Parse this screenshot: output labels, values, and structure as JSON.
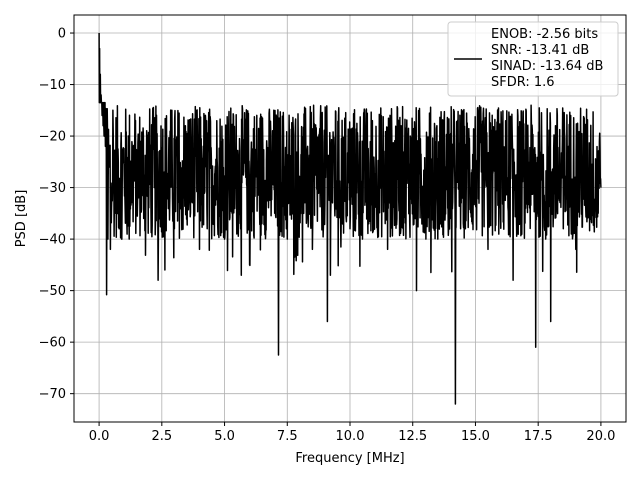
{
  "chart_data": {
    "type": "line",
    "title": "",
    "xlabel": "Frequency [MHz]",
    "ylabel": "PSD [dB]",
    "xlim": [
      -1.0,
      21.0
    ],
    "ylim": [
      -75.5,
      3.5
    ],
    "x_ticks": [
      0.0,
      2.5,
      5.0,
      7.5,
      10.0,
      12.5,
      15.0,
      17.5,
      20.0
    ],
    "x_tick_labels": [
      "0.0",
      "2.5",
      "5.0",
      "7.5",
      "10.0",
      "12.5",
      "15.0",
      "17.5",
      "20.0"
    ],
    "y_ticks": [
      0,
      -10,
      -20,
      -30,
      -40,
      -50,
      -60,
      -70
    ],
    "y_tick_labels": [
      "0",
      "−10",
      "−20",
      "−30",
      "−40",
      "−50",
      "−60",
      "−70"
    ],
    "grid": true,
    "legend_position": "top-right",
    "series": [
      {
        "name": "ENOB: -2.56 bits\nSNR: -13.41 dB\nSINAD: -13.64 dB\nSFDR: 1.6",
        "color": "#000000",
        "x": [
          0.0,
          0.02,
          0.05,
          0.08,
          0.12,
          0.16,
          0.2,
          0.25,
          0.3,
          0.35,
          0.45,
          0.55,
          0.65,
          0.8,
          1.0,
          1.2,
          1.5,
          1.8,
          2.2,
          2.35,
          2.6,
          3.0,
          3.5,
          4.0,
          4.5,
          5.0,
          5.5,
          6.0,
          6.5,
          7.0,
          7.15,
          7.5,
          8.0,
          8.5,
          9.0,
          9.1,
          9.6,
          10.0,
          10.5,
          11.0,
          11.5,
          12.0,
          12.5,
          12.65,
          13.0,
          13.5,
          14.0,
          14.2,
          14.6,
          15.0,
          15.5,
          16.0,
          16.5,
          17.0,
          17.4,
          17.8,
          18.0,
          18.5,
          19.0,
          19.5,
          20.0
        ],
        "y": [
          0.0,
          -3.0,
          -8.0,
          -12.0,
          -16.0,
          -18.0,
          -20.0,
          -22.0,
          -50.8,
          -40.0,
          -42.0,
          -15.0,
          -35.0,
          -38.0,
          -28.0,
          -40.0,
          -32.0,
          -36.0,
          -30.0,
          -48.0,
          -27.0,
          -38.0,
          -35.0,
          -42.0,
          -30.0,
          -40.0,
          -28.0,
          -45.0,
          -30.0,
          -35.0,
          -62.5,
          -40.0,
          -30.0,
          -42.0,
          -33.0,
          -56.0,
          -34.0,
          -38.0,
          -40.0,
          -28.0,
          -42.0,
          -35.0,
          -30.0,
          -50.0,
          -32.0,
          -40.0,
          -36.0,
          -72.0,
          -38.0,
          -30.0,
          -42.0,
          -35.0,
          -48.0,
          -34.0,
          -61.0,
          -40.0,
          -56.0,
          -38.0,
          -42.0,
          -34.0,
          -30.0
        ]
      }
    ]
  }
}
